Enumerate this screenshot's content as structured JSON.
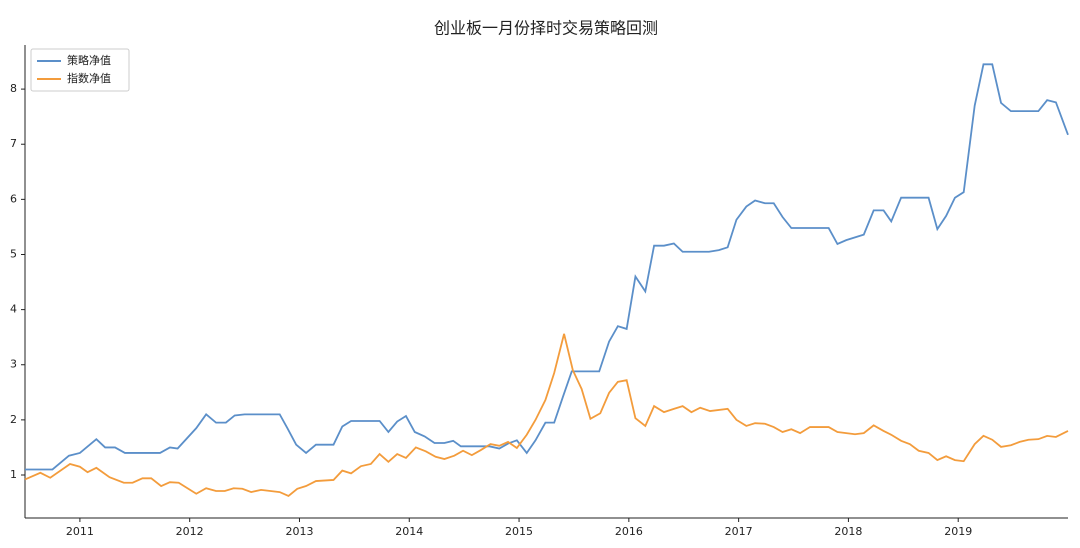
{
  "chart_data": {
    "type": "line",
    "title": "创业板一月份择时交易策略回测",
    "xlim": [
      2010.5,
      2020
    ],
    "xticks": [
      2011,
      2012,
      2013,
      2014,
      2015,
      2016,
      2017,
      2018,
      2019
    ],
    "ylim": [
      0.22,
      8.8
    ],
    "yticks": [
      1,
      2,
      3,
      4,
      5,
      6,
      7,
      8
    ],
    "grid": false,
    "legend": "upper left",
    "series": [
      {
        "name": "策略净值",
        "color": "#5b8fc9",
        "x": [
          2010.5,
          2010.75,
          2010.9,
          2011.0,
          2011.15,
          2011.23,
          2011.32,
          2011.41,
          2011.73,
          2011.82,
          2011.89,
          2012.06,
          2012.15,
          2012.24,
          2012.33,
          2012.41,
          2012.5,
          2012.82,
          2012.89,
          2012.97,
          2013.06,
          2013.15,
          2013.31,
          2013.39,
          2013.47,
          2013.73,
          2013.81,
          2013.89,
          2013.97,
          2014.05,
          2014.14,
          2014.23,
          2014.32,
          2014.4,
          2014.47,
          2014.73,
          2014.82,
          2014.9,
          2014.98,
          2015.07,
          2015.15,
          2015.24,
          2015.32,
          2015.4,
          2015.48,
          2015.73,
          2015.82,
          2015.9,
          2015.98,
          2016.06,
          2016.15,
          2016.23,
          2016.32,
          2016.41,
          2016.49,
          2016.73,
          2016.82,
          2016.9,
          2016.98,
          2017.07,
          2017.15,
          2017.24,
          2017.32,
          2017.4,
          2017.48,
          2017.82,
          2017.9,
          2017.98,
          2018.14,
          2018.23,
          2018.32,
          2018.39,
          2018.48,
          2018.73,
          2018.81,
          2018.89,
          2018.97,
          2019.05,
          2019.15,
          2019.23,
          2019.31,
          2019.39,
          2019.48,
          2019.73,
          2019.81,
          2019.89,
          2020.0
        ],
        "values": [
          1.1,
          1.1,
          1.35,
          1.4,
          1.65,
          1.5,
          1.5,
          1.4,
          1.4,
          1.5,
          1.48,
          1.85,
          2.1,
          1.95,
          1.95,
          2.08,
          2.1,
          2.1,
          1.85,
          1.55,
          1.4,
          1.55,
          1.55,
          1.88,
          1.98,
          1.98,
          1.78,
          1.97,
          2.07,
          1.78,
          1.7,
          1.58,
          1.58,
          1.62,
          1.52,
          1.52,
          1.48,
          1.57,
          1.63,
          1.4,
          1.63,
          1.95,
          1.95,
          2.42,
          2.88,
          2.88,
          3.42,
          3.7,
          3.65,
          4.6,
          4.33,
          5.16,
          5.16,
          5.2,
          5.05,
          5.05,
          5.08,
          5.13,
          5.63,
          5.87,
          5.98,
          5.93,
          5.93,
          5.68,
          5.48,
          5.48,
          5.19,
          5.26,
          5.36,
          5.8,
          5.8,
          5.6,
          6.03,
          6.03,
          5.46,
          5.7,
          6.03,
          6.13,
          7.7,
          8.45,
          8.45,
          7.75,
          7.6,
          7.6,
          7.8,
          7.76,
          7.17
        ]
      },
      {
        "name": "指数净值",
        "color": "#f39c3c",
        "x": [
          2010.5,
          2010.64,
          2010.73,
          2010.91,
          2011.0,
          2011.07,
          2011.15,
          2011.27,
          2011.4,
          2011.48,
          2011.57,
          2011.65,
          2011.74,
          2011.82,
          2011.9,
          2011.98,
          2012.06,
          2012.15,
          2012.24,
          2012.32,
          2012.4,
          2012.48,
          2012.56,
          2012.65,
          2012.82,
          2012.9,
          2012.98,
          2013.06,
          2013.15,
          2013.31,
          2013.39,
          2013.47,
          2013.56,
          2013.65,
          2013.73,
          2013.81,
          2013.89,
          2013.97,
          2014.06,
          2014.15,
          2014.24,
          2014.32,
          2014.41,
          2014.49,
          2014.57,
          2014.65,
          2014.74,
          2014.82,
          2014.9,
          2014.98,
          2015.07,
          2015.15,
          2015.24,
          2015.32,
          2015.41,
          2015.49,
          2015.57,
          2015.65,
          2015.74,
          2015.82,
          2015.9,
          2015.98,
          2016.06,
          2016.15,
          2016.23,
          2016.32,
          2016.41,
          2016.49,
          2016.57,
          2016.65,
          2016.74,
          2016.9,
          2016.98,
          2017.07,
          2017.15,
          2017.24,
          2017.32,
          2017.4,
          2017.48,
          2017.56,
          2017.65,
          2017.82,
          2017.9,
          2018.06,
          2018.14,
          2018.23,
          2018.32,
          2018.39,
          2018.48,
          2018.56,
          2018.64,
          2018.73,
          2018.81,
          2018.89,
          2018.97,
          2019.05,
          2019.15,
          2019.23,
          2019.31,
          2019.39,
          2019.48,
          2019.56,
          2019.64,
          2019.73,
          2019.81,
          2019.89,
          2020.0
        ],
        "values": [
          0.92,
          1.04,
          0.95,
          1.2,
          1.15,
          1.05,
          1.13,
          0.96,
          0.86,
          0.86,
          0.94,
          0.94,
          0.8,
          0.87,
          0.86,
          0.76,
          0.66,
          0.76,
          0.71,
          0.71,
          0.76,
          0.75,
          0.69,
          0.73,
          0.69,
          0.62,
          0.75,
          0.8,
          0.89,
          0.91,
          1.08,
          1.03,
          1.16,
          1.2,
          1.38,
          1.24,
          1.38,
          1.31,
          1.5,
          1.43,
          1.33,
          1.29,
          1.35,
          1.44,
          1.36,
          1.45,
          1.56,
          1.53,
          1.6,
          1.49,
          1.73,
          2.0,
          2.36,
          2.85,
          3.56,
          2.9,
          2.56,
          2.02,
          2.12,
          2.49,
          2.69,
          2.72,
          2.03,
          1.89,
          2.25,
          2.14,
          2.2,
          2.25,
          2.14,
          2.22,
          2.16,
          2.2,
          2.0,
          1.89,
          1.94,
          1.93,
          1.87,
          1.78,
          1.83,
          1.76,
          1.87,
          1.87,
          1.78,
          1.74,
          1.76,
          1.9,
          1.8,
          1.73,
          1.62,
          1.56,
          1.44,
          1.4,
          1.27,
          1.34,
          1.27,
          1.25,
          1.56,
          1.71,
          1.64,
          1.51,
          1.54,
          1.6,
          1.64,
          1.65,
          1.71,
          1.69,
          1.8
        ]
      }
    ]
  }
}
